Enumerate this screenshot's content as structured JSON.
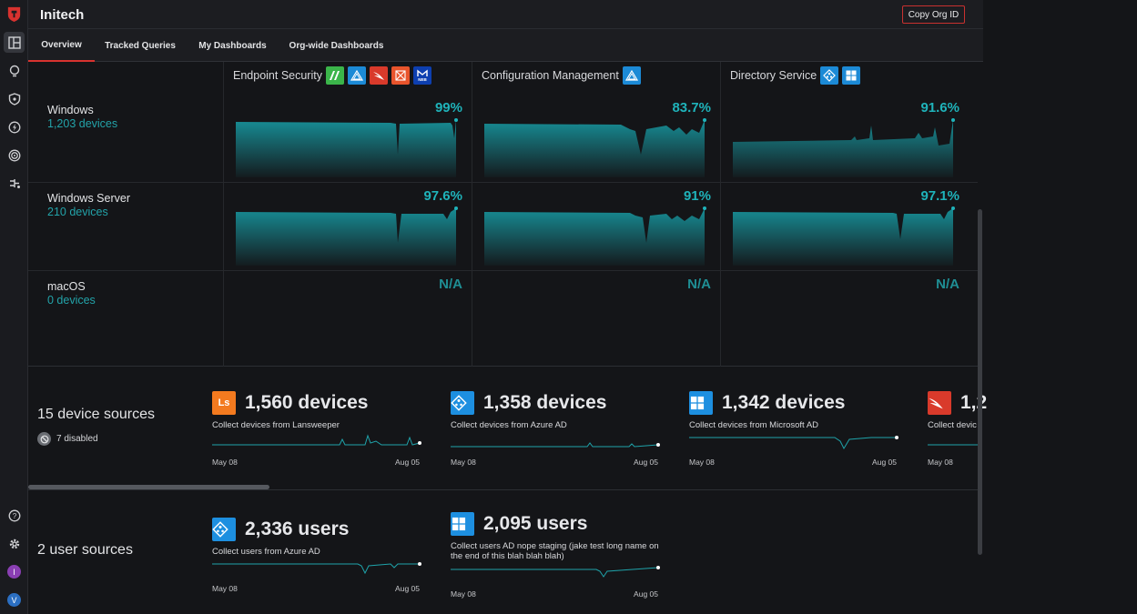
{
  "org": {
    "name": "Initech",
    "copy_button": "Copy Org ID"
  },
  "tabs": [
    {
      "label": "Overview",
      "active": true
    },
    {
      "label": "Tracked Queries"
    },
    {
      "label": "My Dashboards"
    },
    {
      "label": "Org-wide Dashboards"
    }
  ],
  "rail": {
    "icons": [
      "app-logo-icon",
      "dashboard-icon",
      "lightbulb-icon",
      "shield-icon",
      "bolt-icon",
      "target-icon",
      "plug-icon",
      "help-icon",
      "settings-icon"
    ],
    "avatars": [
      {
        "letter": "I",
        "color": "#8a3fb3"
      },
      {
        "letter": "V",
        "color": "#2b6fc2"
      }
    ]
  },
  "coverage": {
    "columns": [
      {
        "title": "Endpoint Security",
        "icons": [
          "sentinelone-icon",
          "azure-icon",
          "crowdstrike-icon",
          "tanium-icon",
          "malwarebytes-icon"
        ]
      },
      {
        "title": "Configuration Management",
        "icons": [
          "intune-icon"
        ]
      },
      {
        "title": "Directory Service",
        "icons": [
          "azure-ad-icon",
          "windows-icon"
        ]
      }
    ],
    "rows": [
      {
        "os": "Windows",
        "devices": "1,203 devices",
        "values": [
          "99%",
          "83.7%",
          "91.6%"
        ]
      },
      {
        "os": "Windows Server",
        "devices": "210 devices",
        "values": [
          "97.6%",
          "91%",
          "97.1%"
        ]
      },
      {
        "os": "macOS",
        "devices": "0 devices",
        "values": [
          "N/A",
          "N/A",
          "N/A"
        ]
      }
    ]
  },
  "device_sources": {
    "title": "15 device sources",
    "disabled": "7 disabled",
    "cards": [
      {
        "icon": "lansweeper-icon",
        "icon_text": "Ls",
        "color": "#f37a1f",
        "count": "1,560 devices",
        "desc": "Collect devices from Lansweeper",
        "start": "May 08",
        "end": "Aug 05"
      },
      {
        "icon": "azure-ad-icon",
        "icon_text": "",
        "color": "#1d8fe0",
        "count": "1,358 devices",
        "desc": "Collect devices from Azure AD",
        "start": "May 08",
        "end": "Aug 05"
      },
      {
        "icon": "windows-icon",
        "icon_text": "",
        "color": "#1d8fe0",
        "count": "1,342 devices",
        "desc": "Collect devices from Microsoft AD",
        "start": "May 08",
        "end": "Aug 05"
      },
      {
        "icon": "crowdstrike-icon",
        "icon_text": "",
        "color": "#d93a2b",
        "count": "1,2",
        "desc": "Collect devic",
        "start": "May 08",
        "end": ""
      }
    ]
  },
  "user_sources": {
    "title": "2 user sources",
    "cards": [
      {
        "icon": "azure-ad-icon",
        "color": "#1d8fe0",
        "count": "2,336 users",
        "desc": "Collect users from Azure AD",
        "start": "May 08",
        "end": "Aug 05"
      },
      {
        "icon": "windows-icon",
        "color": "#1d8fe0",
        "count": "2,095 users",
        "desc": "Collect users AD nope staging (jake test long name on the end of this blah blah blah)",
        "start": "May 08",
        "end": "Aug 05"
      }
    ]
  }
}
